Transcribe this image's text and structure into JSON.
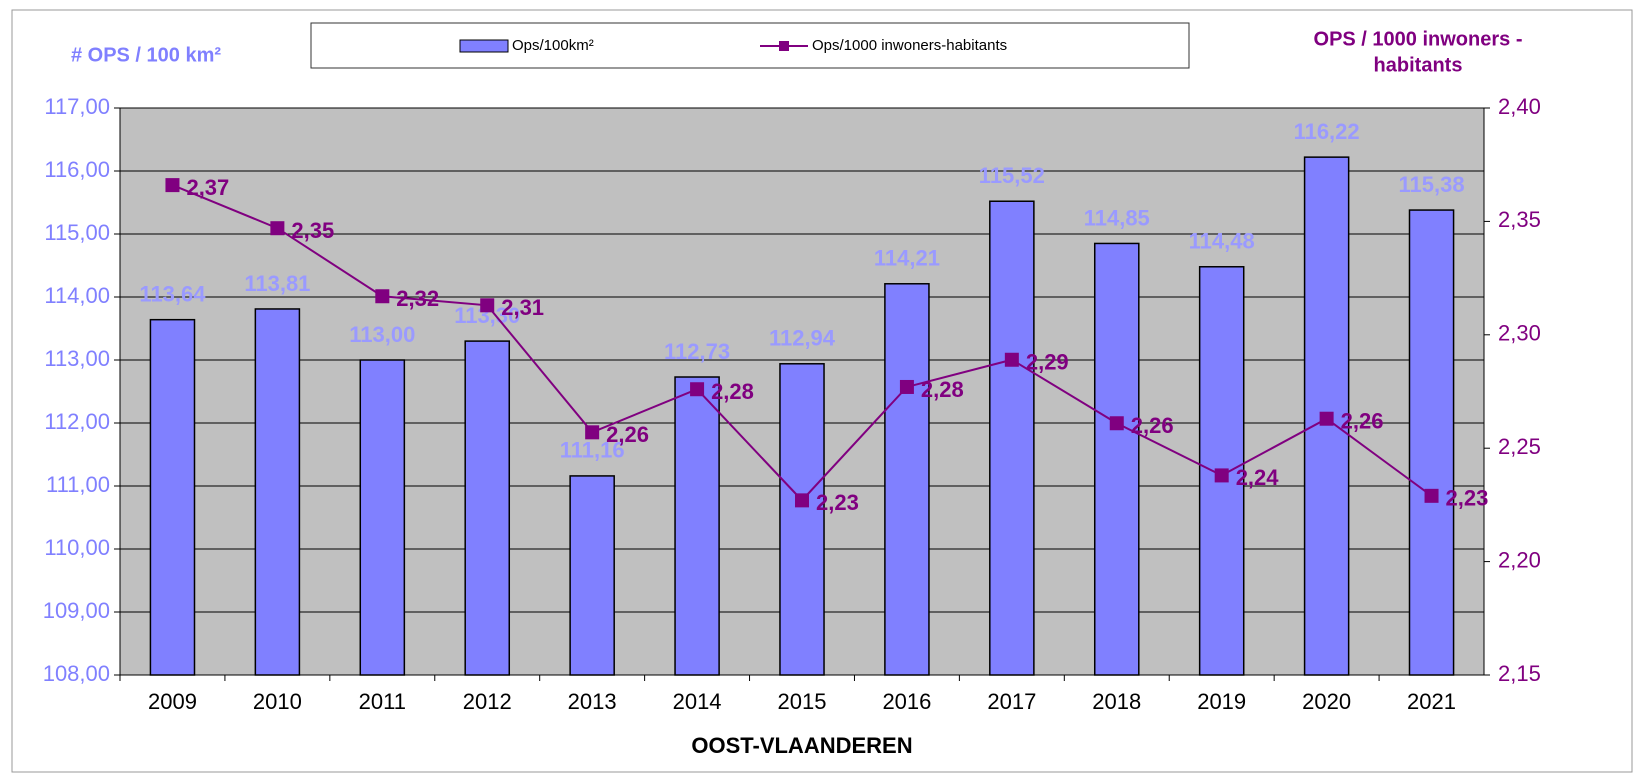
{
  "chart_data": {
    "type": "bar",
    "xlabel": "OOST-VLAANDEREN",
    "ylabel": "# OPS / 100 km²",
    "y2label": [
      "OPS / 1000 inwoners -",
      "habitants"
    ],
    "categories": [
      "2009",
      "2010",
      "2011",
      "2012",
      "2013",
      "2014",
      "2015",
      "2016",
      "2017",
      "2018",
      "2019",
      "2020",
      "2021"
    ],
    "series": [
      {
        "name": "Ops/100km²",
        "type": "bar",
        "axis": "y",
        "color": "#8080ff",
        "label_color": "#9a9aff",
        "values": [
          113.64,
          113.81,
          113.0,
          113.3,
          111.16,
          112.73,
          112.94,
          114.21,
          115.52,
          114.85,
          114.48,
          116.22,
          115.38
        ],
        "value_labels": [
          "113,64",
          "113,81",
          "113,00",
          "113,30",
          "111,16",
          "112,73",
          "112,94",
          "114,21",
          "115,52",
          "114,85",
          "114,48",
          "116,22",
          "115,38"
        ]
      },
      {
        "name": "Ops/1000 inwoners-habitants",
        "type": "line",
        "axis": "y2",
        "color": "#800080",
        "label_color": "#800080",
        "values": [
          2.366,
          2.347,
          2.317,
          2.313,
          2.257,
          2.276,
          2.227,
          2.277,
          2.289,
          2.261,
          2.238,
          2.263,
          2.229
        ],
        "value_labels": [
          "2,37",
          "2,35",
          "2,32",
          "2,31",
          "2,26",
          "2,28",
          "2,23",
          "2,28",
          "2,29",
          "2,26",
          "2,24",
          "2,26",
          "2,23"
        ]
      }
    ],
    "ylim": [
      108,
      117
    ],
    "yticks": [
      {
        "value": 108,
        "label": "108,00"
      },
      {
        "value": 109,
        "label": "109,00"
      },
      {
        "value": 110,
        "label": "110,00"
      },
      {
        "value": 111,
        "label": "111,00"
      },
      {
        "value": 112,
        "label": "112,00"
      },
      {
        "value": 113,
        "label": "113,00"
      },
      {
        "value": 114,
        "label": "114,00"
      },
      {
        "value": 115,
        "label": "115,00"
      },
      {
        "value": 116,
        "label": "116,00"
      },
      {
        "value": 117,
        "label": "117,00"
      }
    ],
    "y2lim": [
      2.15,
      2.4
    ],
    "y2ticks": [
      {
        "value": 2.15,
        "label": "2,15"
      },
      {
        "value": 2.2,
        "label": "2,20"
      },
      {
        "value": 2.25,
        "label": "2,25"
      },
      {
        "value": 2.3,
        "label": "2,30"
      },
      {
        "value": 2.35,
        "label": "2,35"
      },
      {
        "value": 2.4,
        "label": "2,40"
      }
    ],
    "grid": true,
    "legend": "top"
  }
}
